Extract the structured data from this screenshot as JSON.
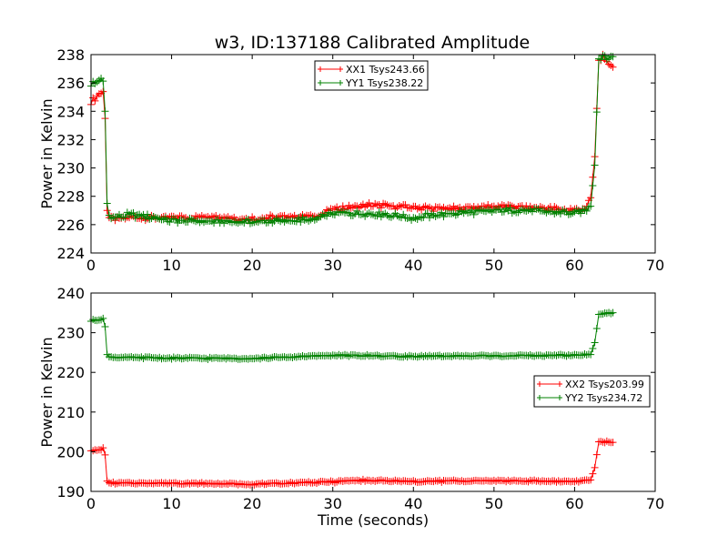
{
  "figure": {
    "title": "w3, ID:137188 Calibrated Amplitude"
  },
  "chart_data": [
    {
      "type": "line",
      "title": "w3, ID:137188 Calibrated Amplitude",
      "xlabel": "",
      "ylabel": "Power in Kelvin",
      "xlim": [
        0,
        70
      ],
      "ylim": [
        224,
        238
      ],
      "xticks": [
        0,
        10,
        20,
        30,
        40,
        50,
        60,
        70
      ],
      "yticks": [
        224,
        226,
        228,
        230,
        232,
        234,
        236,
        238
      ],
      "grid": false,
      "legend": "top-center",
      "marker": "+",
      "series": [
        {
          "name": "XX1 Tsys243.66",
          "color": "#ff0000",
          "anchors": [
            [
              0,
              234.7
            ],
            [
              0.5,
              234.8
            ],
            [
              1.0,
              235.2
            ],
            [
              1.5,
              235.4
            ],
            [
              1.75,
              233.5
            ],
            [
              2.0,
              227.0
            ],
            [
              2.3,
              226.4
            ],
            [
              5,
              226.5
            ],
            [
              10,
              226.5
            ],
            [
              15,
              226.6
            ],
            [
              20,
              226.4
            ],
            [
              25,
              226.6
            ],
            [
              28,
              226.6
            ],
            [
              30,
              227.1
            ],
            [
              35,
              227.4
            ],
            [
              40,
              227.2
            ],
            [
              45,
              227.1
            ],
            [
              50,
              227.3
            ],
            [
              55,
              227.2
            ],
            [
              60,
              227.0
            ],
            [
              61.5,
              227.2
            ],
            [
              62.0,
              227.9
            ],
            [
              62.5,
              230.8
            ],
            [
              63.0,
              237.6
            ],
            [
              63.5,
              237.8
            ],
            [
              64.2,
              237.3
            ],
            [
              64.8,
              237.2
            ]
          ]
        },
        {
          "name": "YY1 Tsys238.22",
          "color": "#008000",
          "anchors": [
            [
              0,
              235.9
            ],
            [
              0.5,
              236.0
            ],
            [
              1.0,
              236.3
            ],
            [
              1.5,
              236.1
            ],
            [
              1.75,
              234.0
            ],
            [
              2.0,
              227.5
            ],
            [
              2.3,
              226.5
            ],
            [
              5,
              226.7
            ],
            [
              10,
              226.3
            ],
            [
              15,
              226.2
            ],
            [
              20,
              226.2
            ],
            [
              25,
              226.3
            ],
            [
              28,
              226.4
            ],
            [
              30,
              226.8
            ],
            [
              35,
              226.8
            ],
            [
              40,
              226.5
            ],
            [
              45,
              226.8
            ],
            [
              50,
              227.0
            ],
            [
              55,
              227.0
            ],
            [
              60,
              226.8
            ],
            [
              61.5,
              227.0
            ],
            [
              62.0,
              227.3
            ],
            [
              62.5,
              230.2
            ],
            [
              63.0,
              237.7
            ],
            [
              63.5,
              237.9
            ],
            [
              64.2,
              237.8
            ],
            [
              64.8,
              237.8
            ]
          ]
        }
      ]
    },
    {
      "type": "line",
      "title": "",
      "xlabel": "Time (seconds)",
      "ylabel": "Power in Kelvin",
      "xlim": [
        0,
        70
      ],
      "ylim": [
        190,
        240
      ],
      "xticks": [
        0,
        10,
        20,
        30,
        40,
        50,
        60,
        70
      ],
      "yticks": [
        190,
        200,
        210,
        220,
        230,
        240
      ],
      "grid": false,
      "legend": "center-right",
      "marker": "+",
      "series": [
        {
          "name": "XX2 Tsys203.99",
          "color": "#ff0000",
          "anchors": [
            [
              0,
              200.3
            ],
            [
              1.0,
              200.4
            ],
            [
              1.5,
              200.8
            ],
            [
              1.75,
              199.2
            ],
            [
              2.0,
              192.6
            ],
            [
              2.3,
              192.1
            ],
            [
              10,
              192.1
            ],
            [
              20,
              191.8
            ],
            [
              30,
              192.4
            ],
            [
              33,
              192.8
            ],
            [
              40,
              192.5
            ],
            [
              50,
              192.7
            ],
            [
              60,
              192.5
            ],
            [
              62.0,
              192.9
            ],
            [
              62.5,
              196.0
            ],
            [
              63.0,
              202.5
            ],
            [
              64.8,
              202.4
            ]
          ]
        },
        {
          "name": "YY2 Tsys234.72",
          "color": "#008000",
          "anchors": [
            [
              0,
              233.0
            ],
            [
              1.0,
              233.3
            ],
            [
              1.5,
              233.5
            ],
            [
              1.75,
              231.5
            ],
            [
              2.0,
              224.5
            ],
            [
              2.3,
              223.8
            ],
            [
              10,
              223.6
            ],
            [
              20,
              223.5
            ],
            [
              30,
              224.3
            ],
            [
              40,
              224.0
            ],
            [
              50,
              224.2
            ],
            [
              60,
              224.3
            ],
            [
              62.0,
              224.5
            ],
            [
              62.5,
              227.5
            ],
            [
              63.0,
              234.6
            ],
            [
              64.8,
              235.0
            ]
          ]
        }
      ]
    }
  ]
}
